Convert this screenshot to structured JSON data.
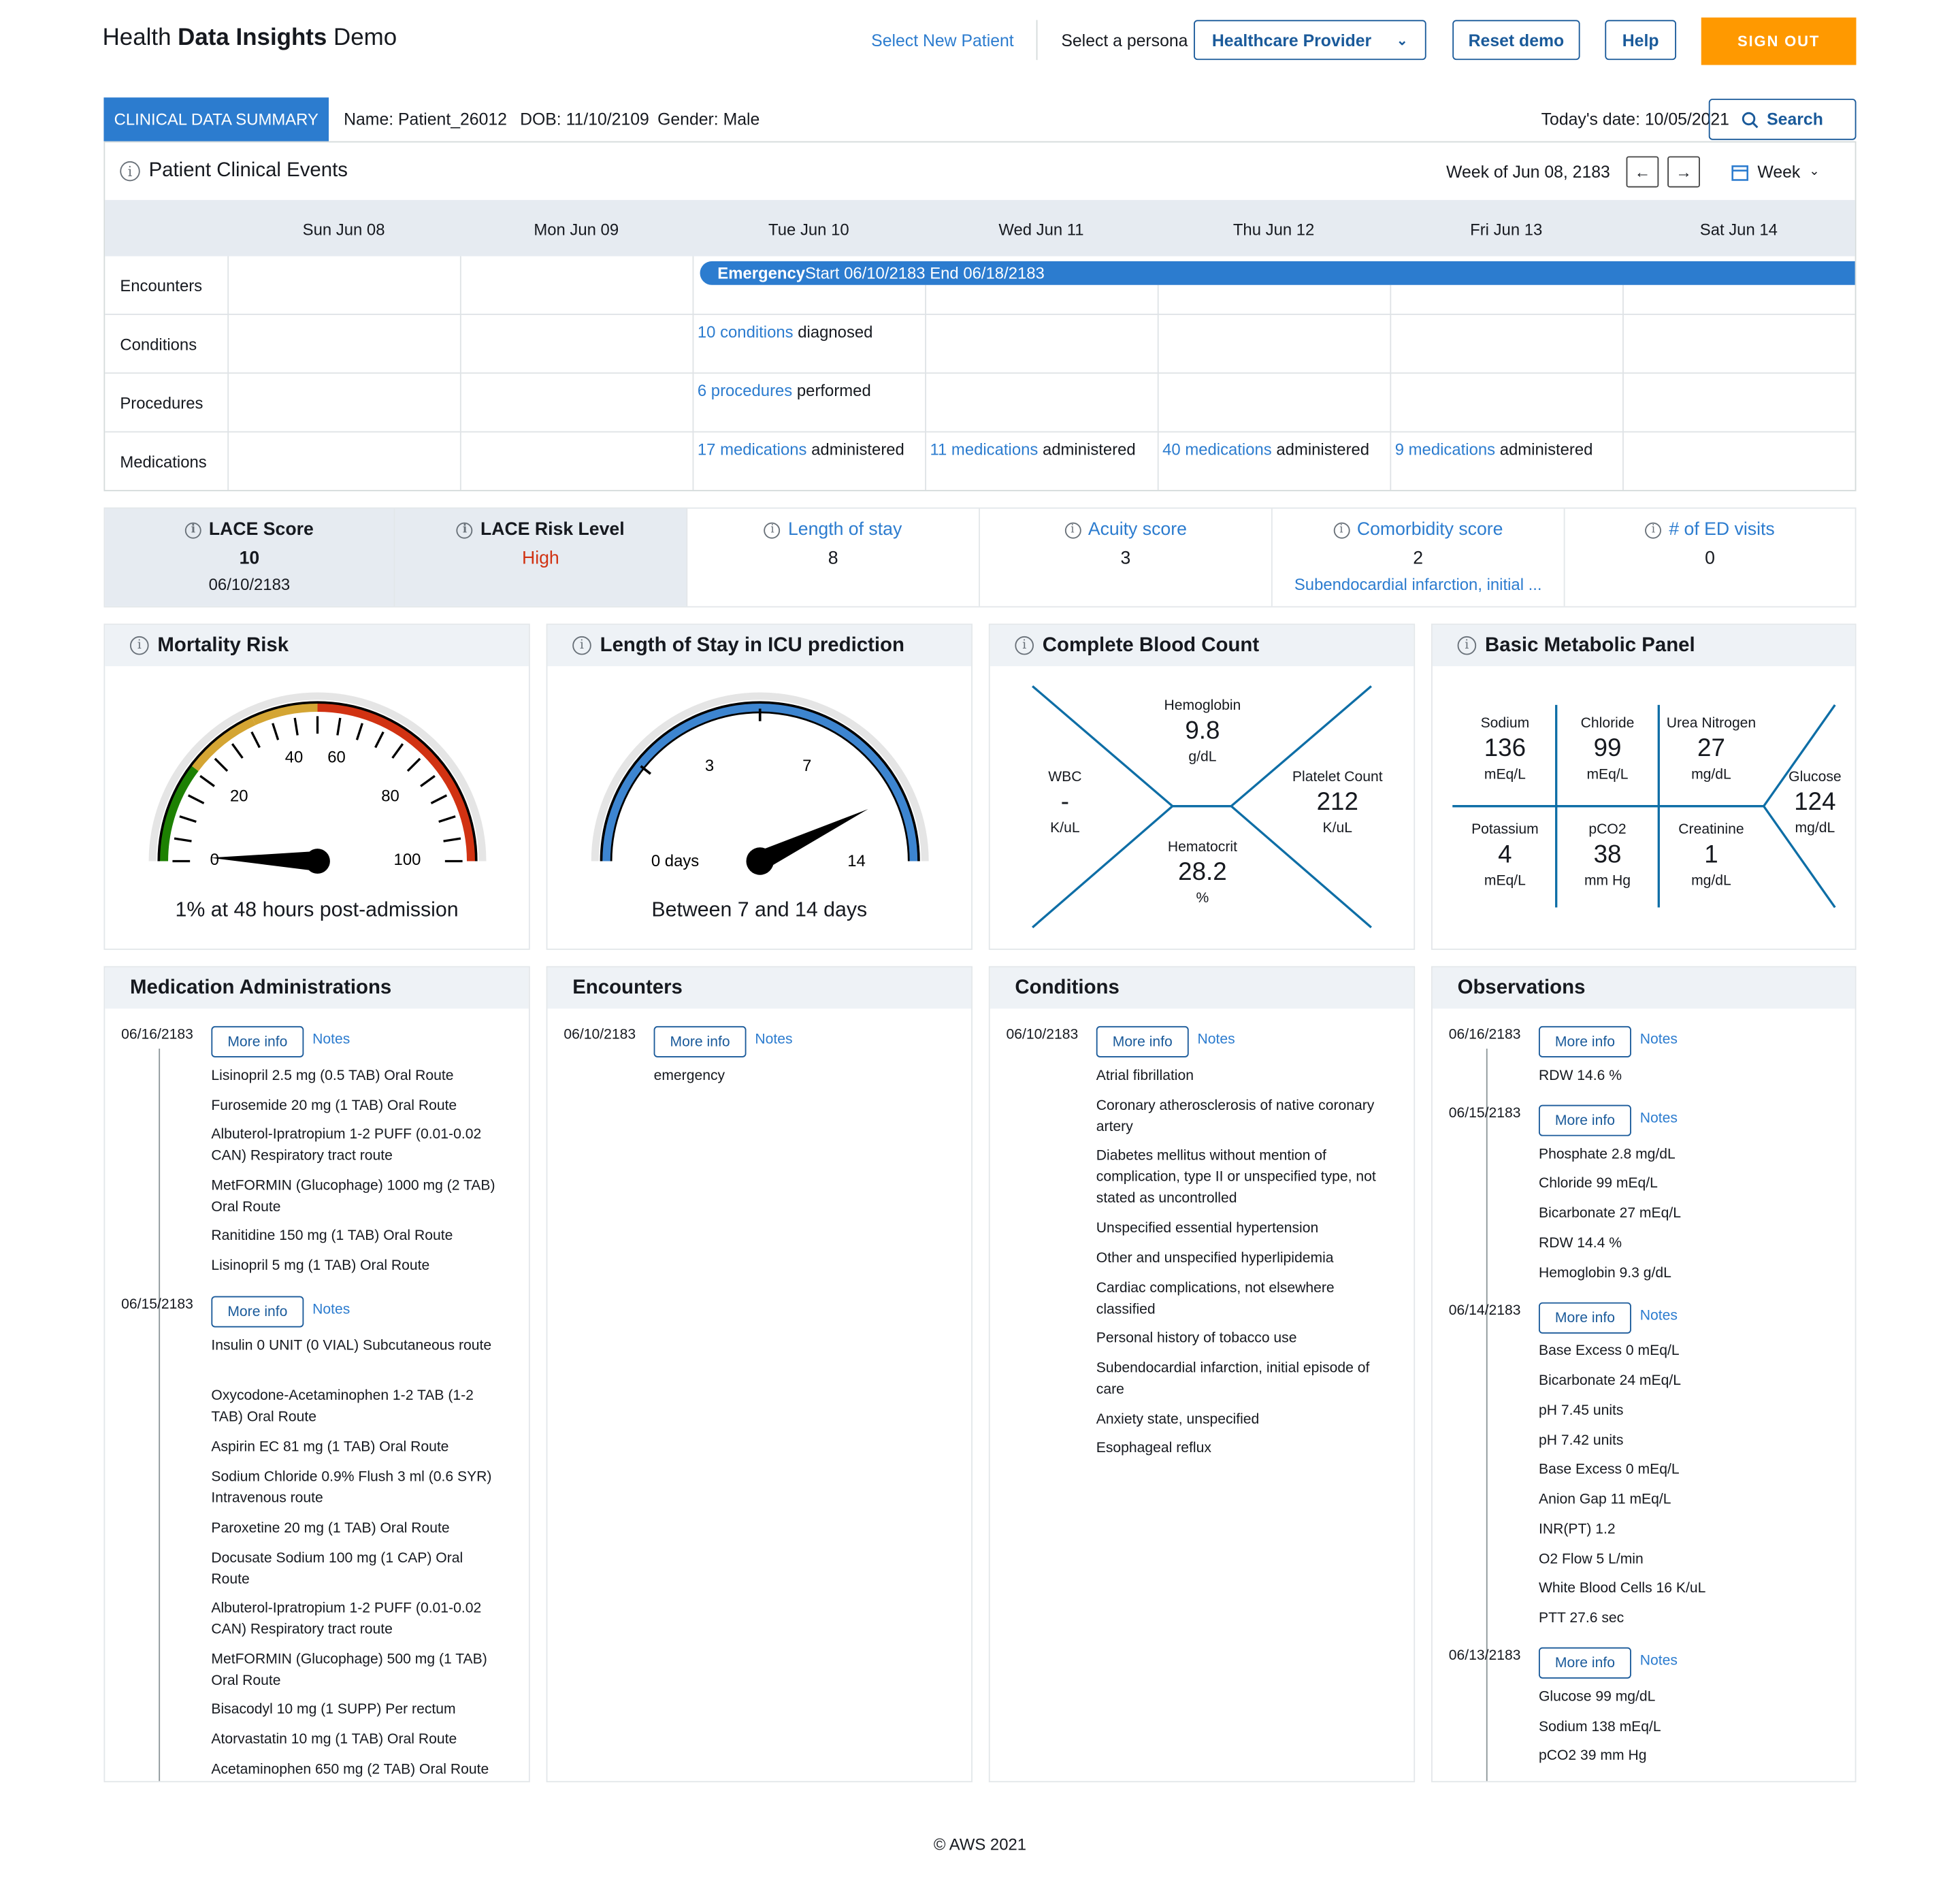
{
  "header": {
    "title_light": "Health ",
    "title_bold": "Data Insights",
    "title_tail": " Demo",
    "select_patient": "Select New Patient",
    "persona_label": "Select a persona",
    "persona_value": "Healthcare Provider",
    "reset": "Reset demo",
    "help": "Help",
    "signout": "SIGN OUT"
  },
  "patient": {
    "tab": "CLINICAL DATA SUMMARY",
    "name": "Name: Patient_26012",
    "dob": "DOB: 11/10/2109",
    "gender": "Gender: Male",
    "today": "Today's date: 10/05/2021",
    "search": "Search"
  },
  "calendar": {
    "title": "Patient Clinical Events",
    "week_label": "Week of Jun 08, 2183",
    "view": "Week",
    "days": [
      "Sun Jun 08",
      "Mon Jun 09",
      "Tue Jun 10",
      "Wed Jun 11",
      "Thu Jun 12",
      "Fri Jun 13",
      "Sat Jun 14"
    ],
    "rows": [
      "Encounters",
      "Conditions",
      "Procedures",
      "Medications"
    ],
    "encounter_bold": "Emergency",
    "encounter_rest": " Start 06/10/2183 End 06/18/2183",
    "conditions_link": "10 conditions",
    "conditions_rest": " diagnosed",
    "procedures_link": "6 procedures",
    "procedures_rest": " performed",
    "meds": [
      {
        "link": "17 medications",
        "rest": " administered"
      },
      {
        "link": "11 medications",
        "rest": " administered"
      },
      {
        "link": "40 medications",
        "rest": " administered"
      },
      {
        "link": "9 medications",
        "rest": " administered"
      }
    ]
  },
  "scores": {
    "lace_title": "LACE Score",
    "lace_value": "10",
    "lace_date": "06/10/2183",
    "risk_title": "LACE Risk Level",
    "risk_value": "High",
    "los_title": "Length of stay",
    "los_value": "8",
    "acuity_title": "Acuity score",
    "acuity_value": "3",
    "comorb_title": "Comorbidity score",
    "comorb_value": "2",
    "comorb_sub": "Subendocardial infarction, initial ...",
    "ed_title": "# of ED visits",
    "ed_value": "0",
    "risk_color": "#d13212"
  },
  "mortality": {
    "title": "Mortality Risk",
    "ticks": [
      "0",
      "20",
      "40",
      "60",
      "80",
      "100"
    ],
    "value": 1,
    "caption": "1% at 48 hours post-admission"
  },
  "icu": {
    "title": "Length of Stay in ICU prediction",
    "ticks": [
      "0 days",
      "3",
      "7",
      "14"
    ],
    "value_days": 12,
    "caption": "Between 7 and 14 days"
  },
  "cbc": {
    "title": "Complete Blood Count",
    "hgb_label": "Hemoglobin",
    "hgb_value": "9.8",
    "hgb_unit": "g/dL",
    "wbc_label": "WBC",
    "wbc_value": "-",
    "wbc_unit": "K/uL",
    "plt_label": "Platelet Count",
    "plt_value": "212",
    "plt_unit": "K/uL",
    "hct_label": "Hematocrit",
    "hct_value": "28.2",
    "hct_unit": "%"
  },
  "bmp": {
    "title": "Basic Metabolic Panel",
    "na_label": "Sodium",
    "na_value": "136",
    "na_unit": "mEq/L",
    "cl_label": "Chloride",
    "cl_value": "99",
    "cl_unit": "mEq/L",
    "bun_label": "Urea Nitrogen",
    "bun_value": "27",
    "bun_unit": "mg/dL",
    "k_label": "Potassium",
    "k_value": "4",
    "k_unit": "mEq/L",
    "co2_label": "pCO2",
    "co2_value": "38",
    "co2_unit": "mm Hg",
    "cr_label": "Creatinine",
    "cr_value": "1",
    "cr_unit": "mg/dL",
    "glu_label": "Glucose",
    "glu_value": "124",
    "glu_unit": "mg/dL"
  },
  "medications": {
    "title": "Medication Administrations",
    "more_info": "More info",
    "notes": "Notes",
    "groups": [
      {
        "date": "06/16/2183",
        "items": [
          "Lisinopril 2.5 mg (0.5 TAB) Oral Route",
          "Furosemide 20 mg (1 TAB) Oral Route",
          "Albuterol-Ipratropium 1-2 PUFF (0.01-0.02 CAN) Respiratory tract route",
          "MetFORMIN (Glucophage) 1000 mg (2 TAB) Oral Route",
          "Ranitidine 150 mg (1 TAB) Oral Route",
          "Lisinopril 5 mg (1 TAB) Oral Route"
        ]
      },
      {
        "date": "06/15/2183",
        "items": [
          "Insulin 0 UNIT (0 VIAL) Subcutaneous route",
          "Oxycodone-Acetaminophen 1-2 TAB (1-2 TAB) Oral Route",
          "Aspirin EC 81 mg (1 TAB) Oral Route",
          "Sodium Chloride 0.9% Flush 3 ml (0.6 SYR) Intravenous route",
          "Paroxetine 20 mg (1 TAB) Oral Route",
          "Docusate Sodium 100 mg (1 CAP) Oral Route",
          "Albuterol-Ipratropium 1-2 PUFF (0.01-0.02 CAN) Respiratory tract route",
          "MetFORMIN (Glucophage) 500 mg (1 TAB) Oral Route",
          "Bisacodyl 10 mg (1 SUPP) Per rectum",
          "Atorvastatin 10 mg (1 TAB) Oral Route",
          "Acetaminophen 650 mg (2 TAB) Oral Route"
        ]
      }
    ]
  },
  "encounters": {
    "title": "Encounters",
    "date": "06/10/2183",
    "items": [
      "emergency"
    ]
  },
  "conditions": {
    "title": "Conditions",
    "date": "06/10/2183",
    "items": [
      "Atrial fibrillation",
      "Coronary atherosclerosis of native coronary artery",
      "Diabetes mellitus without mention of complication, type II or unspecified type, not stated as uncontrolled",
      "Unspecified essential hypertension",
      "Other and unspecified hyperlipidemia",
      "Cardiac complications, not elsewhere classified",
      "Personal history of tobacco use",
      "Subendocardial infarction, initial episode of care",
      "Anxiety state, unspecified",
      "Esophageal reflux"
    ]
  },
  "observations": {
    "title": "Observations",
    "groups": [
      {
        "date": "06/16/2183",
        "items": [
          "RDW 14.6 %"
        ]
      },
      {
        "date": "06/15/2183",
        "items": [
          "Phosphate 2.8 mg/dL",
          "Chloride 99 mEq/L",
          "Bicarbonate 27 mEq/L",
          "RDW 14.4 %",
          "Hemoglobin 9.3 g/dL"
        ]
      },
      {
        "date": "06/14/2183",
        "items": [
          "Base Excess 0 mEq/L",
          "Bicarbonate 24 mEq/L",
          "pH 7.45 units",
          "pH 7.42 units",
          "Base Excess 0 mEq/L",
          "Anion Gap 11 mEq/L",
          "INR(PT) 1.2",
          "O2 Flow 5 L/min",
          "White Blood Cells 16 K/uL",
          "PTT 27.6 sec"
        ]
      },
      {
        "date": "06/13/2183",
        "items": [
          "Glucose 99 mg/dL",
          "Sodium 138 mEq/L",
          "pCO2 39 mm Hg"
        ]
      }
    ]
  },
  "footer": "© AWS 2021",
  "colors": {
    "primary": "#2c7ccf",
    "accent": "#ff9900",
    "link": "#0073bb",
    "gauge_green": "#1d8102",
    "gauge_yellow": "#d4a533",
    "gauge_red": "#d13212"
  }
}
